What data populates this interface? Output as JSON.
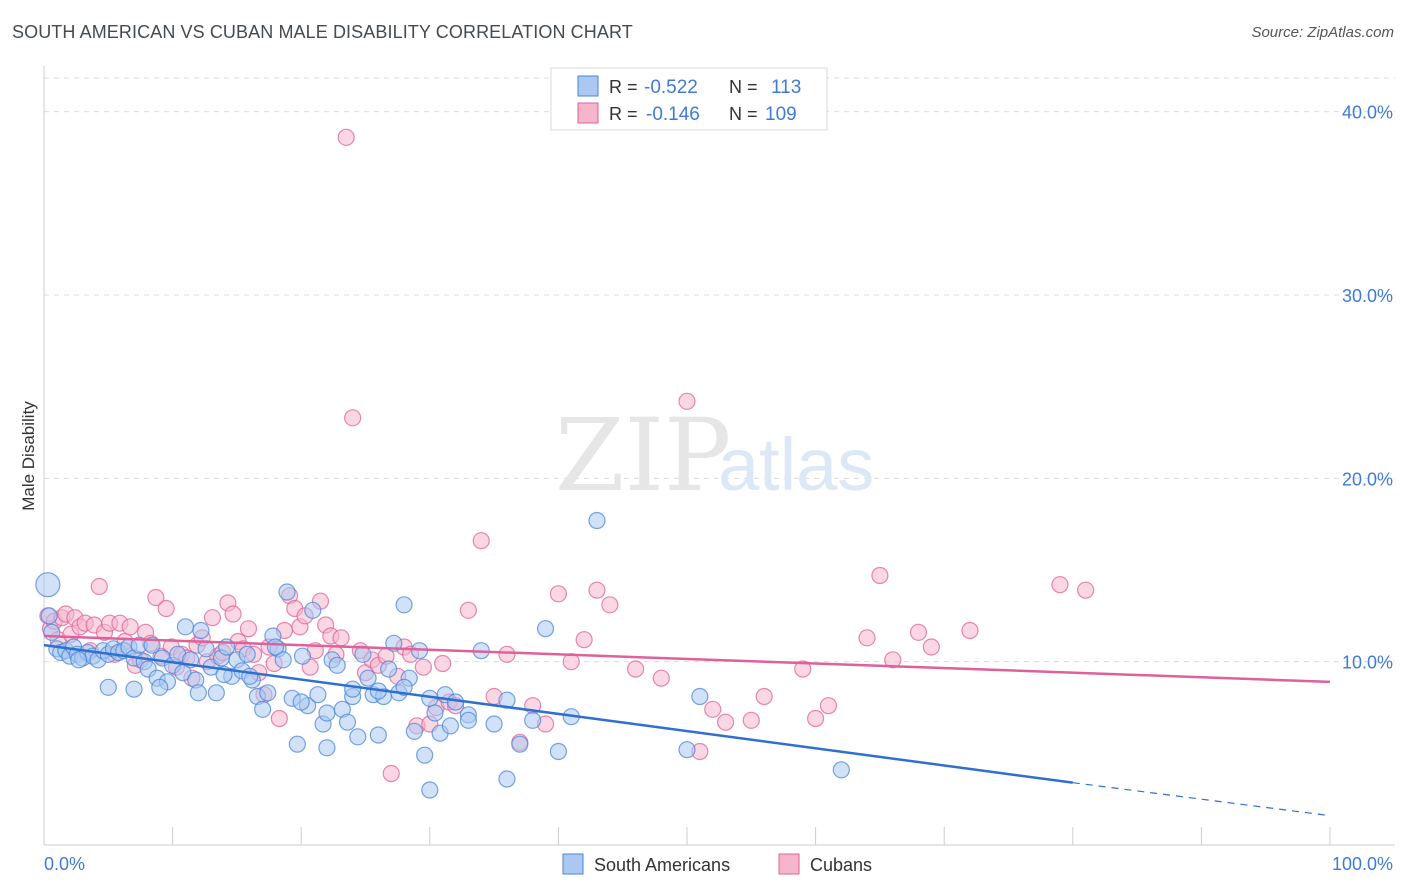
{
  "title": "SOUTH AMERICAN VS CUBAN MALE DISABILITY CORRELATION CHART",
  "source": "Source: ZipAtlas.com",
  "watermark": {
    "zip": "ZIP",
    "atlas": "atlas"
  },
  "colors": {
    "blue": "#4a86d8",
    "blue_fill": "#aac8f2",
    "pink": "#e0609a",
    "pink_fill": "#f5b6cc",
    "tick_label": "#3f7bd6",
    "grid": "#dcdcdc"
  },
  "legend": {
    "rows": [
      {
        "r_label": "R =",
        "r_value": "-0.522",
        "n_label": "N =",
        "n_value": "113"
      },
      {
        "r_label": "R =",
        "r_value": "-0.146",
        "n_label": "N =",
        "n_value": "109"
      }
    ]
  },
  "bottom_legend": {
    "items": [
      "South Americans",
      "Cubans"
    ]
  },
  "chart_data": {
    "type": "scatter",
    "title": "SOUTH AMERICAN VS CUBAN MALE DISABILITY CORRELATION CHART",
    "xlabel": "",
    "ylabel": "Male Disability",
    "xlim": [
      0,
      100
    ],
    "ylim": [
      0,
      42
    ],
    "x_tick_labels": [
      "0.0%",
      "100.0%"
    ],
    "y_ticks": [
      10,
      20,
      30,
      40
    ],
    "y_tick_labels": [
      "10.0%",
      "20.0%",
      "30.0%",
      "40.0%"
    ],
    "grid": true,
    "legend_position": "top-center",
    "series": [
      {
        "name": "South Americans",
        "r": -0.522,
        "n": 113,
        "trend": {
          "x0": 0,
          "y0": 10.9,
          "x1": 80,
          "y1": 3.4,
          "dashed_to_x": 100,
          "dashed_to_y": 1.6
        },
        "points": [
          [
            0.3,
            14.2
          ],
          [
            0.4,
            12.5
          ],
          [
            0.6,
            11.6
          ],
          [
            1,
            10.7
          ],
          [
            1.3,
            10.5
          ],
          [
            1.7,
            10.6
          ],
          [
            2,
            10.3
          ],
          [
            2.3,
            10.8
          ],
          [
            2.6,
            10.4
          ],
          [
            3,
            10.2
          ],
          [
            3.4,
            10.5
          ],
          [
            3.8,
            10.3
          ],
          [
            4.2,
            10.1
          ],
          [
            4.6,
            10.6
          ],
          [
            5,
            10.4
          ],
          [
            5.4,
            10.7
          ],
          [
            5.8,
            10.5
          ],
          [
            6.2,
            10.6
          ],
          [
            6.6,
            10.8
          ],
          [
            7,
            10.2
          ],
          [
            7.4,
            10.9
          ],
          [
            7.8,
            10.0
          ],
          [
            8.1,
            9.6
          ],
          [
            8.4,
            10.9
          ],
          [
            8.8,
            9.1
          ],
          [
            9.2,
            10.2
          ],
          [
            9.6,
            8.9
          ],
          [
            10,
            9.8
          ],
          [
            10.4,
            10.4
          ],
          [
            10.8,
            9.4
          ],
          [
            11,
            11.9
          ],
          [
            11.4,
            10.1
          ],
          [
            11.8,
            9.0
          ],
          [
            12.2,
            11.7
          ],
          [
            12.6,
            10.7
          ],
          [
            13,
            9.7
          ],
          [
            13.4,
            8.3
          ],
          [
            13.8,
            10.2
          ],
          [
            14.2,
            10.8
          ],
          [
            14.6,
            9.2
          ],
          [
            15,
            10.1
          ],
          [
            15.4,
            9.5
          ],
          [
            15.8,
            10.4
          ],
          [
            16.2,
            9.0
          ],
          [
            16.6,
            8.1
          ],
          [
            17,
            7.4
          ],
          [
            17.4,
            8.3
          ],
          [
            17.8,
            11.4
          ],
          [
            18.2,
            10.7
          ],
          [
            18.6,
            10.1
          ],
          [
            18.9,
            13.8
          ],
          [
            19.3,
            8.0
          ],
          [
            19.7,
            5.5
          ],
          [
            20.1,
            10.3
          ],
          [
            20.5,
            7.6
          ],
          [
            20.9,
            12.8
          ],
          [
            21.3,
            8.2
          ],
          [
            21.7,
            6.6
          ],
          [
            22,
            7.2
          ],
          [
            22.4,
            10.1
          ],
          [
            22.8,
            9.8
          ],
          [
            23.2,
            7.4
          ],
          [
            23.6,
            6.7
          ],
          [
            24,
            8.1
          ],
          [
            24.4,
            5.9
          ],
          [
            24.8,
            10.4
          ],
          [
            25.2,
            9.1
          ],
          [
            25.6,
            8.2
          ],
          [
            26,
            6.0
          ],
          [
            26.4,
            8.1
          ],
          [
            26.8,
            9.6
          ],
          [
            27.2,
            11.0
          ],
          [
            27.6,
            8.3
          ],
          [
            28,
            13.1
          ],
          [
            28.4,
            9.1
          ],
          [
            28.8,
            6.2
          ],
          [
            29.2,
            10.6
          ],
          [
            29.6,
            4.9
          ],
          [
            30,
            8.0
          ],
          [
            30.4,
            7.2
          ],
          [
            30.8,
            6.1
          ],
          [
            31.2,
            8.2
          ],
          [
            31.6,
            6.5
          ],
          [
            32,
            7.8
          ],
          [
            33,
            7.1
          ],
          [
            34,
            10.6
          ],
          [
            35,
            6.6
          ],
          [
            36,
            3.6
          ],
          [
            37,
            5.5
          ],
          [
            38,
            6.8
          ],
          [
            39,
            11.8
          ],
          [
            40,
            5.1
          ],
          [
            41,
            7.0
          ],
          [
            43,
            17.7
          ],
          [
            50,
            5.2
          ],
          [
            51,
            8.1
          ],
          [
            62,
            4.1
          ],
          [
            2.7,
            10.1
          ],
          [
            5,
            8.6
          ],
          [
            7,
            8.5
          ],
          [
            9,
            8.6
          ],
          [
            12,
            8.3
          ],
          [
            14,
            9.3
          ],
          [
            16,
            9.2
          ],
          [
            18,
            10.8
          ],
          [
            20,
            7.8
          ],
          [
            22,
            5.3
          ],
          [
            24,
            8.5
          ],
          [
            26,
            8.4
          ],
          [
            28,
            8.6
          ],
          [
            30,
            3.0
          ],
          [
            33,
            6.8
          ],
          [
            36,
            7.9
          ]
        ]
      },
      {
        "name": "Cubans",
        "r": -0.146,
        "n": 109,
        "trend": {
          "x0": 0,
          "y0": 11.4,
          "x1": 100,
          "y1": 8.9
        },
        "points": [
          [
            0.3,
            12.5
          ],
          [
            0.5,
            11.8
          ],
          [
            0.8,
            12.2
          ],
          [
            1.1,
            11.2
          ],
          [
            1.4,
            12.4
          ],
          [
            1.7,
            12.6
          ],
          [
            2.1,
            11.5
          ],
          [
            2.4,
            12.4
          ],
          [
            2.8,
            11.9
          ],
          [
            3.2,
            12.1
          ],
          [
            3.6,
            10.6
          ],
          [
            3.9,
            12.0
          ],
          [
            4.3,
            14.1
          ],
          [
            4.7,
            11.6
          ],
          [
            5.1,
            12.1
          ],
          [
            5.5,
            10.4
          ],
          [
            5.9,
            12.1
          ],
          [
            6.3,
            11.1
          ],
          [
            6.7,
            11.9
          ],
          [
            7.1,
            9.8
          ],
          [
            7.5,
            10.1
          ],
          [
            7.9,
            11.6
          ],
          [
            8.3,
            11.0
          ],
          [
            8.7,
            13.5
          ],
          [
            9.1,
            10.3
          ],
          [
            9.5,
            12.9
          ],
          [
            9.9,
            10.8
          ],
          [
            10.3,
            9.7
          ],
          [
            10.7,
            10.4
          ],
          [
            11.1,
            10.2
          ],
          [
            11.5,
            9.1
          ],
          [
            11.9,
            10.9
          ],
          [
            12.3,
            11.3
          ],
          [
            12.7,
            10.0
          ],
          [
            13.1,
            12.4
          ],
          [
            13.5,
            10.3
          ],
          [
            13.9,
            10.5
          ],
          [
            14.3,
            13.2
          ],
          [
            14.7,
            12.6
          ],
          [
            15.1,
            11.1
          ],
          [
            15.5,
            10.7
          ],
          [
            15.9,
            11.8
          ],
          [
            16.3,
            10.4
          ],
          [
            16.7,
            9.4
          ],
          [
            17.1,
            8.2
          ],
          [
            17.5,
            10.8
          ],
          [
            17.9,
            9.9
          ],
          [
            18.3,
            6.9
          ],
          [
            18.7,
            11.7
          ],
          [
            19.1,
            13.6
          ],
          [
            19.5,
            12.9
          ],
          [
            19.9,
            11.9
          ],
          [
            20.3,
            12.5
          ],
          [
            20.7,
            9.7
          ],
          [
            21.1,
            10.6
          ],
          [
            21.5,
            13.3
          ],
          [
            21.9,
            12.0
          ],
          [
            22.3,
            11.4
          ],
          [
            22.7,
            10.4
          ],
          [
            23.1,
            11.3
          ],
          [
            23.5,
            38.6
          ],
          [
            24,
            23.3
          ],
          [
            24.6,
            10.6
          ],
          [
            25,
            9.4
          ],
          [
            25.5,
            10.1
          ],
          [
            26,
            9.8
          ],
          [
            26.6,
            10.3
          ],
          [
            27,
            3.9
          ],
          [
            27.5,
            9.2
          ],
          [
            28,
            10.8
          ],
          [
            28.5,
            10.4
          ],
          [
            29,
            6.5
          ],
          [
            29.5,
            9.7
          ],
          [
            30,
            6.6
          ],
          [
            30.5,
            7.5
          ],
          [
            31,
            9.9
          ],
          [
            31.5,
            7.8
          ],
          [
            32,
            7.6
          ],
          [
            33,
            12.8
          ],
          [
            34,
            16.6
          ],
          [
            35,
            8.1
          ],
          [
            36,
            10.4
          ],
          [
            37,
            5.6
          ],
          [
            38,
            7.6
          ],
          [
            39,
            6.6
          ],
          [
            40,
            13.7
          ],
          [
            41,
            10.0
          ],
          [
            42,
            11.2
          ],
          [
            43,
            13.9
          ],
          [
            44,
            13.1
          ],
          [
            46,
            9.6
          ],
          [
            48,
            9.1
          ],
          [
            50,
            24.2
          ],
          [
            51,
            5.1
          ],
          [
            52,
            7.4
          ],
          [
            53,
            6.7
          ],
          [
            55,
            6.8
          ],
          [
            56,
            8.1
          ],
          [
            59,
            9.6
          ],
          [
            60,
            6.9
          ],
          [
            61,
            7.6
          ],
          [
            64,
            11.3
          ],
          [
            65,
            14.7
          ],
          [
            66,
            10.1
          ],
          [
            68,
            11.6
          ],
          [
            69,
            10.8
          ],
          [
            72,
            11.7
          ],
          [
            79,
            14.2
          ],
          [
            81,
            13.9
          ]
        ]
      }
    ]
  }
}
